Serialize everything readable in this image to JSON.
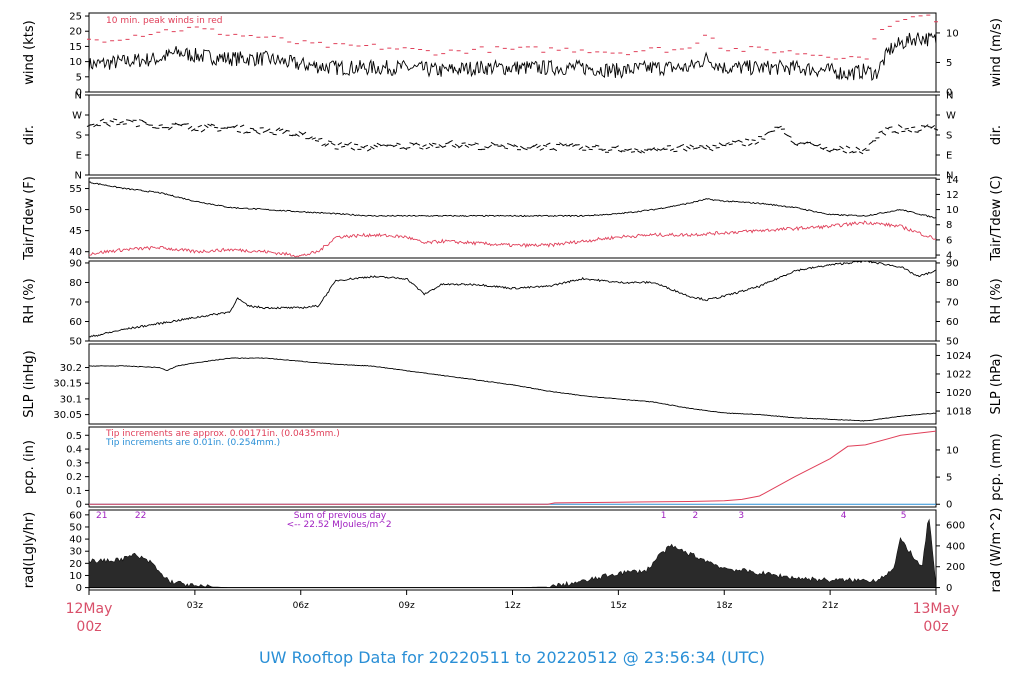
{
  "footer": "UW Rooftop Data for 20220511  to  20220512 @ 23:56:34  (UTC)",
  "colors": {
    "black": "#000000",
    "red": "#e0405a",
    "blue": "#2a8fd6",
    "purple": "#a020c0",
    "date_label": "#d9506a"
  },
  "time_axis": {
    "range_hours": [
      0,
      24
    ],
    "tick_hours": [
      0,
      3,
      6,
      9,
      12,
      15,
      18,
      21,
      24
    ],
    "tick_labels": [
      "",
      "03z",
      "06z",
      "09z",
      "12z",
      "15z",
      "18z",
      "21z",
      ""
    ],
    "start_label": [
      "12May",
      "00z"
    ],
    "end_label": [
      "13May",
      "00z"
    ]
  },
  "chart_data": [
    {
      "type": "line",
      "id": "wind",
      "ylabel_left": "wind (kts)",
      "ylabel_right": "wind (m/s)",
      "ylim": [
        0,
        26
      ],
      "left_ticks": [
        0,
        5,
        10,
        15,
        20,
        25
      ],
      "right_ticks": [
        {
          "label": "0",
          "value": 0
        },
        {
          "label": "5",
          "value": 9.72
        },
        {
          "label": "10",
          "value": 19.44
        }
      ],
      "annotation": "10 min. peak winds in red",
      "series": [
        {
          "color": "black",
          "style": "noisy",
          "amp": 2.5,
          "x": [
            0,
            1,
            2,
            2.5,
            3,
            4,
            5,
            6,
            7,
            8,
            9,
            10,
            11,
            12,
            13,
            14,
            15,
            16,
            17,
            17.5,
            18,
            19,
            20,
            21,
            21.5,
            22,
            22.3,
            22.7,
            23,
            23.5,
            24
          ],
          "y": [
            9,
            10,
            11,
            13,
            12,
            11,
            11,
            9,
            8,
            8,
            8,
            7,
            8,
            8,
            8,
            8,
            7,
            8,
            8,
            11,
            8,
            8,
            8,
            7,
            6,
            7,
            6,
            14,
            16,
            18,
            17
          ]
        },
        {
          "color": "red",
          "style": "dash",
          "x": [
            0,
            1,
            2,
            3,
            4,
            5,
            6,
            7,
            8,
            9,
            10,
            11,
            12,
            13,
            14,
            15,
            16,
            17,
            17.5,
            18,
            19,
            20,
            21,
            22,
            22.5,
            23,
            23.5,
            24
          ],
          "y": [
            17,
            18,
            20,
            21,
            19,
            18,
            16,
            15,
            15,
            14,
            13,
            14,
            14,
            14,
            14,
            13,
            14,
            14,
            20,
            14,
            14,
            13,
            12,
            11,
            22,
            23,
            25,
            24
          ]
        }
      ]
    },
    {
      "type": "scatter",
      "id": "dir",
      "ylabel_left": "dir.",
      "ylabel_right": "dir.",
      "ylim": [
        0,
        360
      ],
      "left_ticks": [
        {
          "label": "N",
          "value": 0
        },
        {
          "label": "E",
          "value": 90
        },
        {
          "label": "S",
          "value": 180
        },
        {
          "label": "W",
          "value": 270
        },
        {
          "label": "N",
          "value": 360
        }
      ],
      "right_ticks": [
        {
          "label": "N",
          "value": 0
        },
        {
          "label": "E",
          "value": 90
        },
        {
          "label": "S",
          "value": 180
        },
        {
          "label": "W",
          "value": 270
        },
        {
          "label": "N",
          "value": 360
        }
      ],
      "series": [
        {
          "color": "black",
          "style": "dash",
          "amp": 15,
          "x": [
            0,
            1,
            2,
            3,
            4,
            5,
            6,
            7,
            8,
            9,
            10,
            11,
            12,
            13,
            14,
            15,
            16,
            17,
            18,
            19,
            19.5,
            20,
            21,
            22,
            22.5,
            23,
            24
          ],
          "y": [
            230,
            240,
            225,
            215,
            210,
            200,
            180,
            130,
            125,
            130,
            140,
            130,
            125,
            130,
            120,
            115,
            115,
            120,
            130,
            160,
            215,
            150,
            110,
            115,
            200,
            205,
            210
          ]
        }
      ]
    },
    {
      "type": "line",
      "id": "temp",
      "ylabel_left": "Tair/Tdew (F)",
      "ylabel_right": "Tair/Tdew (C)",
      "ylim": [
        38.5,
        57.5
      ],
      "left_ticks": [
        40,
        45,
        50,
        55
      ],
      "right_ticks": [
        {
          "label": "4",
          "value": 39.2
        },
        {
          "label": "6",
          "value": 42.8
        },
        {
          "label": "8",
          "value": 46.4
        },
        {
          "label": "10",
          "value": 50
        },
        {
          "label": "12",
          "value": 53.6
        },
        {
          "label": "14",
          "value": 57.2
        }
      ],
      "series": [
        {
          "color": "black",
          "style": "noisy",
          "amp": 0.15,
          "x": [
            0,
            1,
            2,
            3,
            4,
            5,
            6,
            7,
            8,
            9,
            10,
            11,
            12,
            13,
            14,
            15,
            16,
            17,
            17.5,
            18,
            19,
            20,
            21,
            22,
            23,
            23.5,
            24
          ],
          "y": [
            56.5,
            55,
            54,
            52,
            50.5,
            50,
            49.5,
            49,
            48.5,
            48.5,
            48.5,
            48.5,
            48.5,
            48.5,
            48.5,
            49,
            50,
            51.5,
            52.5,
            52,
            51.5,
            50.5,
            48.8,
            48.5,
            50,
            49,
            48
          ]
        },
        {
          "color": "red",
          "style": "noisy",
          "amp": 0.4,
          "x": [
            0,
            1,
            2,
            3,
            4,
            5,
            6,
            6.5,
            7,
            8,
            9,
            9.5,
            10,
            11,
            12,
            13,
            14,
            15,
            16,
            17,
            18,
            19,
            20,
            21,
            22,
            23,
            24
          ],
          "y": [
            39.5,
            40.5,
            41,
            40,
            40.5,
            40,
            39,
            40,
            43.5,
            44,
            43.5,
            42,
            42.5,
            42,
            41.5,
            41.5,
            42.5,
            43.5,
            44,
            44,
            44.5,
            45,
            45.5,
            46,
            47,
            46,
            43
          ]
        }
      ]
    },
    {
      "type": "line",
      "id": "rh",
      "ylabel_left": "RH (%)",
      "ylabel_right": "RH (%)",
      "ylim": [
        50,
        91
      ],
      "left_ticks": [
        50,
        60,
        70,
        80,
        90
      ],
      "right_ticks": [
        {
          "label": "50",
          "value": 50
        },
        {
          "label": "60",
          "value": 60
        },
        {
          "label": "70",
          "value": 70
        },
        {
          "label": "80",
          "value": 80
        },
        {
          "label": "90",
          "value": 90
        }
      ],
      "series": [
        {
          "color": "black",
          "style": "noisy",
          "amp": 0.5,
          "x": [
            0,
            1,
            2,
            3,
            4,
            4.2,
            4.5,
            5,
            6,
            6.5,
            7,
            8,
            9,
            9.5,
            10,
            11,
            12,
            13,
            14,
            15,
            16,
            17,
            17.5,
            18,
            19,
            20,
            21,
            22,
            23,
            23.5,
            24
          ],
          "y": [
            52,
            56,
            59,
            62,
            65,
            72,
            68,
            67,
            67,
            68,
            81,
            83,
            82,
            74,
            79,
            79,
            77,
            78,
            82,
            80,
            80,
            73,
            71,
            73,
            78,
            86,
            89,
            91,
            88,
            83,
            86
          ]
        }
      ]
    },
    {
      "type": "line",
      "id": "slp",
      "ylabel_left": "SLP (inHg)",
      "ylabel_right": "SLP (hPa)",
      "ylim": [
        30.02,
        30.275
      ],
      "left_ticks": [
        30.05,
        30.1,
        30.15,
        30.2
      ],
      "right_ticks": [
        {
          "label": "1018",
          "value": 30.0613
        },
        {
          "label": "1020",
          "value": 30.1204
        },
        {
          "label": "1022",
          "value": 30.1795
        },
        {
          "label": "1024",
          "value": 30.2385
        }
      ],
      "series": [
        {
          "color": "black",
          "style": "noisy",
          "amp": 0.001,
          "x": [
            0,
            1,
            2,
            2.2,
            2.5,
            3,
            4,
            5,
            6,
            7,
            8,
            9,
            10,
            11,
            12,
            13,
            14,
            15,
            16,
            17,
            18,
            19,
            20,
            21,
            22,
            23,
            24
          ],
          "y": [
            30.205,
            30.205,
            30.2,
            30.19,
            30.205,
            30.215,
            30.23,
            30.23,
            30.22,
            30.21,
            30.205,
            30.19,
            30.175,
            30.16,
            30.145,
            30.125,
            30.11,
            30.1,
            30.09,
            30.07,
            30.055,
            30.05,
            30.04,
            30.035,
            30.03,
            30.045,
            30.055
          ]
        }
      ]
    },
    {
      "type": "line",
      "id": "pcp",
      "ylabel_left": "pcp. (in)",
      "ylabel_right": "pcp. (mm)",
      "ylim": [
        -0.02,
        0.56
      ],
      "left_ticks": [
        0,
        0.1,
        0.2,
        0.3,
        0.4,
        0.5
      ],
      "right_ticks": [
        {
          "label": "0",
          "value": 0
        },
        {
          "label": "5",
          "value": 0.1969
        },
        {
          "label": "10",
          "value": 0.3937
        }
      ],
      "annotations": [
        {
          "text": "Tip increments are approx. 0.00171in. (0.0435mm.)",
          "color": "red"
        },
        {
          "text": "Tip increments are 0.01in. (0.254mm.)",
          "color": "blue"
        }
      ],
      "series": [
        {
          "color": "blue",
          "style": "line",
          "x": [
            0,
            24
          ],
          "y": [
            0,
            0
          ]
        },
        {
          "color": "red",
          "style": "line",
          "x": [
            0,
            13,
            13.2,
            15,
            17,
            18,
            18.5,
            19,
            20,
            21,
            21.5,
            22,
            23,
            24
          ],
          "y": [
            0,
            0,
            0.01,
            0.015,
            0.02,
            0.025,
            0.035,
            0.06,
            0.2,
            0.33,
            0.42,
            0.43,
            0.5,
            0.53
          ]
        }
      ]
    },
    {
      "type": "area",
      "id": "rad",
      "ylabel_left": "rad(Lgly/hr)",
      "ylabel_right": "rad (W/m^2)",
      "ylim": [
        -2,
        64
      ],
      "left_ticks": [
        0,
        10,
        20,
        30,
        40,
        50,
        60
      ],
      "right_ticks": [
        {
          "label": "0",
          "value": 0
        },
        {
          "label": "200",
          "value": 17.2
        },
        {
          "label": "400",
          "value": 34.4
        },
        {
          "label": "600",
          "value": 51.6
        }
      ],
      "labels_top": [
        {
          "text": "21",
          "x": 0.2
        },
        {
          "text": "22",
          "x": 1.3
        },
        {
          "text": "1",
          "x": 16.2
        },
        {
          "text": "2",
          "x": 17.1
        },
        {
          "text": "3",
          "x": 18.4
        },
        {
          "text": "4",
          "x": 21.3
        },
        {
          "text": "5",
          "x": 23.0
        }
      ],
      "annotation": [
        "Sum of previous day",
        "<-- 22.52 MJoules/m^2"
      ],
      "series": [
        {
          "color": "black",
          "style": "area",
          "amp": 2,
          "x": [
            0,
            0.5,
            1,
            1.3,
            1.5,
            1.8,
            2,
            2.3,
            2.7,
            3,
            4,
            12,
            13,
            14,
            15,
            15.8,
            16.2,
            16.5,
            17,
            17.5,
            18,
            19,
            20,
            21,
            22,
            22.3,
            22.8,
            23,
            23.3,
            23.6,
            23.8,
            24
          ],
          "y": [
            22,
            22,
            24,
            27,
            24,
            20,
            12,
            5,
            3,
            1,
            0,
            0,
            0.5,
            5,
            12,
            14,
            28,
            34,
            28,
            22,
            16,
            12,
            8,
            6,
            6,
            6,
            15,
            40,
            28,
            15,
            60,
            0
          ]
        }
      ]
    }
  ]
}
